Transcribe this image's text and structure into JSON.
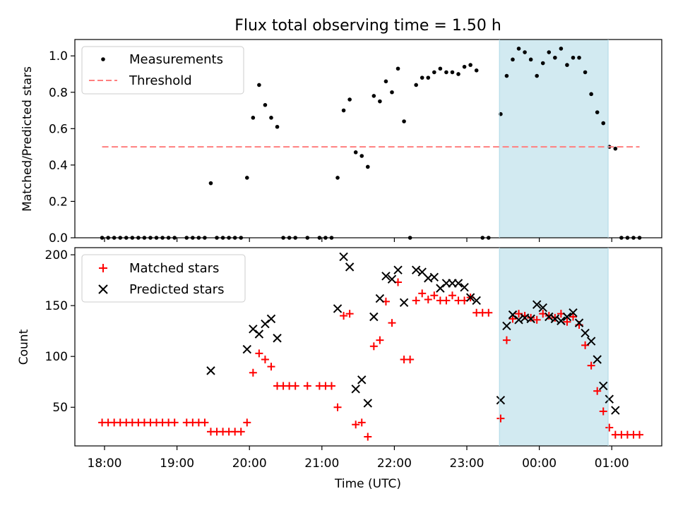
{
  "title": "Flux total observing time = 1.50 h",
  "xlabel": "Time (UTC)",
  "x_tick_labels": [
    "18:00",
    "19:00",
    "20:00",
    "21:00",
    "22:00",
    "23:00",
    "00:00",
    "01:00"
  ],
  "highlight_region_color": "#add8e6",
  "chart_data": [
    {
      "type": "scatter",
      "ylabel": "Matched/Predicted stars",
      "ylim": [
        0,
        1.09
      ],
      "yticks": [
        "0.0",
        "0.2",
        "0.4",
        "0.6",
        "0.8",
        "1.0"
      ],
      "legend_position": "top-left",
      "highlight_x_range": [
        "23:27",
        "00:57"
      ],
      "series": [
        {
          "name": "Measurements",
          "color": "#000000",
          "marker": "dot",
          "points": [
            [
              "17:58",
              0
            ],
            [
              "18:03",
              0
            ],
            [
              "18:08",
              0
            ],
            [
              "18:13",
              0
            ],
            [
              "18:18",
              0
            ],
            [
              "18:23",
              0
            ],
            [
              "18:28",
              0
            ],
            [
              "18:33",
              0
            ],
            [
              "18:38",
              0
            ],
            [
              "18:43",
              0
            ],
            [
              "18:48",
              0
            ],
            [
              "18:53",
              0
            ],
            [
              "18:58",
              0
            ],
            [
              "19:08",
              0
            ],
            [
              "19:13",
              0
            ],
            [
              "19:18",
              0
            ],
            [
              "19:23",
              0
            ],
            [
              "19:28",
              0.3
            ],
            [
              "19:33",
              0
            ],
            [
              "19:38",
              0
            ],
            [
              "19:43",
              0
            ],
            [
              "19:48",
              0
            ],
            [
              "19:53",
              0
            ],
            [
              "19:58",
              0.33
            ],
            [
              "20:03",
              0.66
            ],
            [
              "20:08",
              0.84
            ],
            [
              "20:13",
              0.73
            ],
            [
              "20:18",
              0.66
            ],
            [
              "20:23",
              0.61
            ],
            [
              "20:28",
              0
            ],
            [
              "20:33",
              0
            ],
            [
              "20:38",
              0
            ],
            [
              "20:48",
              0
            ],
            [
              "20:58",
              0
            ],
            [
              "21:03",
              0
            ],
            [
              "21:08",
              0
            ],
            [
              "21:13",
              0.33
            ],
            [
              "21:18",
              0.7
            ],
            [
              "21:23",
              0.76
            ],
            [
              "21:28",
              0.47
            ],
            [
              "21:33",
              0.45
            ],
            [
              "21:38",
              0.39
            ],
            [
              "21:43",
              0.78
            ],
            [
              "21:48",
              0.75
            ],
            [
              "21:53",
              0.86
            ],
            [
              "21:58",
              0.8
            ],
            [
              "22:03",
              0.93
            ],
            [
              "22:08",
              0.64
            ],
            [
              "22:13",
              0
            ],
            [
              "22:18",
              0.84
            ],
            [
              "22:23",
              0.88
            ],
            [
              "22:28",
              0.88
            ],
            [
              "22:33",
              0.91
            ],
            [
              "22:38",
              0.93
            ],
            [
              "22:43",
              0.91
            ],
            [
              "22:48",
              0.91
            ],
            [
              "22:53",
              0.9
            ],
            [
              "22:58",
              0.94
            ],
            [
              "23:03",
              0.95
            ],
            [
              "23:08",
              0.92
            ],
            [
              "23:13",
              0
            ],
            [
              "23:18",
              0
            ],
            [
              "23:28",
              0.68
            ],
            [
              "23:33",
              0.89
            ],
            [
              "23:38",
              0.98
            ],
            [
              "23:43",
              1.04
            ],
            [
              "23:48",
              1.02
            ],
            [
              "23:53",
              0.98
            ],
            [
              "23:58",
              0.89
            ],
            [
              "00:03",
              0.96
            ],
            [
              "00:08",
              1.02
            ],
            [
              "00:13",
              0.99
            ],
            [
              "00:18",
              1.04
            ],
            [
              "00:23",
              0.95
            ],
            [
              "00:28",
              0.99
            ],
            [
              "00:33",
              0.99
            ],
            [
              "00:38",
              0.91
            ],
            [
              "00:43",
              0.79
            ],
            [
              "00:48",
              0.69
            ],
            [
              "00:53",
              0.63
            ],
            [
              "00:58",
              0.5
            ],
            [
              "01:03",
              0.49
            ],
            [
              "01:08",
              0
            ],
            [
              "01:13",
              0
            ],
            [
              "01:18",
              0
            ],
            [
              "01:23",
              0
            ]
          ]
        },
        {
          "name": "Threshold",
          "color": "#ff7f7f",
          "line_style": "dashed",
          "points": [
            [
              "17:58",
              0.5
            ],
            [
              "01:23",
              0.5
            ]
          ]
        }
      ]
    },
    {
      "type": "scatter",
      "ylabel": "Count",
      "ylim": [
        12,
        207
      ],
      "yticks": [
        "50",
        "100",
        "150",
        "200"
      ],
      "legend_position": "top-left",
      "highlight_x_range": [
        "23:27",
        "00:57"
      ],
      "series": [
        {
          "name": "Matched stars",
          "color": "#ff0000",
          "marker": "plus",
          "points": [
            [
              "17:58",
              35
            ],
            [
              "18:03",
              35
            ],
            [
              "18:08",
              35
            ],
            [
              "18:13",
              35
            ],
            [
              "18:18",
              35
            ],
            [
              "18:23",
              35
            ],
            [
              "18:28",
              35
            ],
            [
              "18:33",
              35
            ],
            [
              "18:38",
              35
            ],
            [
              "18:43",
              35
            ],
            [
              "18:48",
              35
            ],
            [
              "18:53",
              35
            ],
            [
              "18:58",
              35
            ],
            [
              "19:08",
              35
            ],
            [
              "19:13",
              35
            ],
            [
              "19:18",
              35
            ],
            [
              "19:23",
              35
            ],
            [
              "19:28",
              26
            ],
            [
              "19:33",
              26
            ],
            [
              "19:38",
              26
            ],
            [
              "19:43",
              26
            ],
            [
              "19:48",
              26
            ],
            [
              "19:53",
              26
            ],
            [
              "19:58",
              35
            ],
            [
              "20:03",
              84
            ],
            [
              "20:08",
              103
            ],
            [
              "20:13",
              97
            ],
            [
              "20:18",
              90
            ],
            [
              "20:23",
              71
            ],
            [
              "20:28",
              71
            ],
            [
              "20:33",
              71
            ],
            [
              "20:38",
              71
            ],
            [
              "20:48",
              71
            ],
            [
              "20:58",
              71
            ],
            [
              "21:03",
              71
            ],
            [
              "21:08",
              71
            ],
            [
              "21:13",
              50
            ],
            [
              "21:18",
              140
            ],
            [
              "21:23",
              142
            ],
            [
              "21:28",
              33
            ],
            [
              "21:33",
              35
            ],
            [
              "21:38",
              21
            ],
            [
              "21:43",
              110
            ],
            [
              "21:48",
              116
            ],
            [
              "21:53",
              154
            ],
            [
              "21:58",
              133
            ],
            [
              "22:03",
              173
            ],
            [
              "22:08",
              97
            ],
            [
              "22:13",
              97
            ],
            [
              "22:18",
              155
            ],
            [
              "22:23",
              162
            ],
            [
              "22:28",
              156
            ],
            [
              "22:33",
              160
            ],
            [
              "22:38",
              155
            ],
            [
              "22:43",
              155
            ],
            [
              "22:48",
              160
            ],
            [
              "22:53",
              155
            ],
            [
              "22:58",
              155
            ],
            [
              "23:03",
              158
            ],
            [
              "23:08",
              143
            ],
            [
              "23:13",
              143
            ],
            [
              "23:18",
              143
            ],
            [
              "23:28",
              39
            ],
            [
              "23:33",
              116
            ],
            [
              "23:38",
              137
            ],
            [
              "23:43",
              142
            ],
            [
              "23:48",
              140
            ],
            [
              "23:53",
              138
            ],
            [
              "23:58",
              136
            ],
            [
              "00:03",
              142
            ],
            [
              "00:08",
              140
            ],
            [
              "00:13",
              138
            ],
            [
              "00:18",
              142
            ],
            [
              "00:23",
              134
            ],
            [
              "00:28",
              139
            ],
            [
              "00:33",
              131
            ],
            [
              "00:38",
              111
            ],
            [
              "00:43",
              91
            ],
            [
              "00:48",
              66
            ],
            [
              "00:53",
              46
            ],
            [
              "00:58",
              30
            ],
            [
              "01:03",
              23
            ],
            [
              "01:08",
              23
            ],
            [
              "01:13",
              23
            ],
            [
              "01:18",
              23
            ],
            [
              "01:23",
              23
            ]
          ]
        },
        {
          "name": "Predicted stars",
          "color": "#000000",
          "marker": "x",
          "points": [
            [
              "19:28",
              86
            ],
            [
              "19:58",
              107
            ],
            [
              "20:03",
              127
            ],
            [
              "20:08",
              122
            ],
            [
              "20:13",
              132
            ],
            [
              "20:18",
              137
            ],
            [
              "20:23",
              118
            ],
            [
              "21:13",
              147
            ],
            [
              "21:18",
              198
            ],
            [
              "21:23",
              188
            ],
            [
              "21:28",
              68
            ],
            [
              "21:33",
              77
            ],
            [
              "21:38",
              54
            ],
            [
              "21:43",
              139
            ],
            [
              "21:48",
              157
            ],
            [
              "21:53",
              179
            ],
            [
              "21:58",
              176
            ],
            [
              "22:03",
              185
            ],
            [
              "22:08",
              153
            ],
            [
              "22:18",
              185
            ],
            [
              "22:23",
              183
            ],
            [
              "22:28",
              177
            ],
            [
              "22:33",
              178
            ],
            [
              "22:38",
              167
            ],
            [
              "22:43",
              172
            ],
            [
              "22:48",
              172
            ],
            [
              "22:53",
              172
            ],
            [
              "22:58",
              168
            ],
            [
              "23:03",
              158
            ],
            [
              "23:08",
              155
            ],
            [
              "23:28",
              57
            ],
            [
              "23:33",
              130
            ],
            [
              "23:38",
              141
            ],
            [
              "23:43",
              136
            ],
            [
              "23:48",
              138
            ],
            [
              "23:53",
              137
            ],
            [
              "23:58",
              151
            ],
            [
              "00:03",
              148
            ],
            [
              "00:08",
              139
            ],
            [
              "00:13",
              137
            ],
            [
              "00:18",
              135
            ],
            [
              "00:23",
              139
            ],
            [
              "00:28",
              143
            ],
            [
              "00:33",
              133
            ],
            [
              "00:38",
              123
            ],
            [
              "00:43",
              115
            ],
            [
              "00:48",
              97
            ],
            [
              "00:53",
              71
            ],
            [
              "00:58",
              58
            ],
            [
              "01:03",
              47
            ]
          ]
        }
      ]
    }
  ]
}
